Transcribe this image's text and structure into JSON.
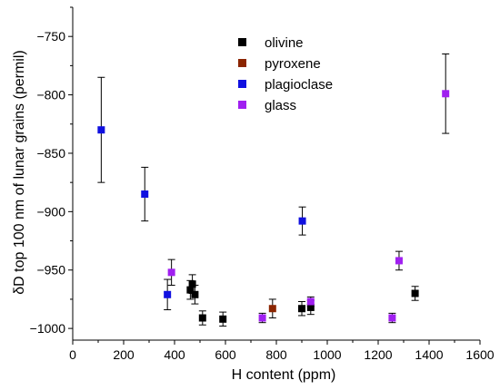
{
  "chart_data": {
    "type": "scatter",
    "title": "",
    "xlabel": "H content (ppm)",
    "ylabel": "δD top 100 nm of lunar grains (permil)",
    "xlim": [
      0,
      1600
    ],
    "ylim": [
      -1010,
      -725
    ],
    "x_ticks": [
      0,
      200,
      400,
      600,
      800,
      1000,
      1200,
      1400,
      1600
    ],
    "y_ticks": [
      -1000,
      -950,
      -900,
      -850,
      -800,
      -750
    ],
    "x_tick_labels": [
      "0",
      "200",
      "400",
      "600",
      "800",
      "1000",
      "1200",
      "1400",
      "1600"
    ],
    "y_tick_labels": [
      "−1000",
      "−950",
      "−900",
      "−850",
      "−800",
      "−750"
    ],
    "grid": false,
    "legend_position": "top-center",
    "series": [
      {
        "name": "olivine",
        "color": "#000000",
        "points": [
          {
            "x": 462,
            "y": -967,
            "err": 8
          },
          {
            "x": 470,
            "y": -962,
            "err": 8
          },
          {
            "x": 480,
            "y": -971,
            "err": 8
          },
          {
            "x": 510,
            "y": -991,
            "err": 6
          },
          {
            "x": 590,
            "y": -992,
            "err": 6
          },
          {
            "x": 900,
            "y": -983,
            "err": 6
          },
          {
            "x": 935,
            "y": -982,
            "err": 6
          },
          {
            "x": 1345,
            "y": -970,
            "err": 6
          }
        ]
      },
      {
        "name": "pyroxene",
        "color": "#8b2500",
        "points": [
          {
            "x": 785,
            "y": -983,
            "err": 8
          }
        ]
      },
      {
        "name": "plagioclase",
        "color": "#1010e0",
        "points": [
          {
            "x": 112,
            "y": -830,
            "err": 45
          },
          {
            "x": 283,
            "y": -885,
            "err": 23
          },
          {
            "x": 372,
            "y": -971,
            "err": 13
          },
          {
            "x": 902,
            "y": -908,
            "err": 12
          }
        ]
      },
      {
        "name": "glass",
        "color": "#a020f0",
        "points": [
          {
            "x": 388,
            "y": -952,
            "err": 11
          },
          {
            "x": 745,
            "y": -991,
            "err": 4
          },
          {
            "x": 935,
            "y": -977,
            "err": 4
          },
          {
            "x": 1255,
            "y": -991,
            "err": 4
          },
          {
            "x": 1282,
            "y": -942,
            "err": 8
          },
          {
            "x": 1465,
            "y": -799,
            "err": 34
          }
        ]
      }
    ]
  }
}
